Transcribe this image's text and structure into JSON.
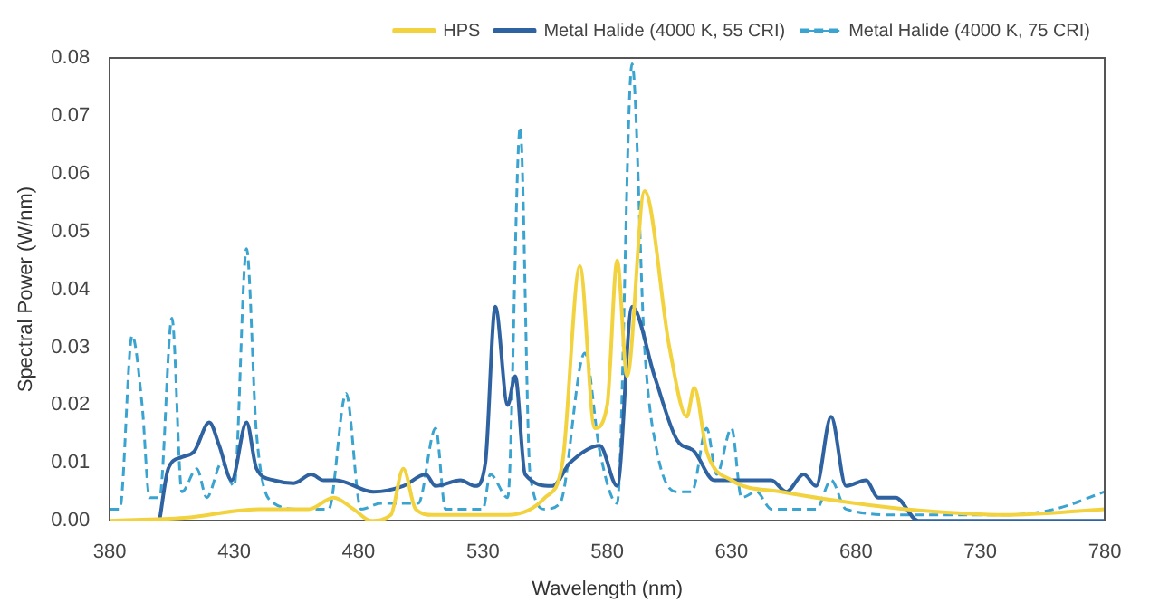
{
  "chart_data": {
    "type": "line",
    "xlabel": "Wavelength (nm)",
    "ylabel": "Spectral Power (W/nm)",
    "xlim": [
      380,
      780
    ],
    "xticks": [
      380,
      430,
      480,
      530,
      580,
      630,
      680,
      730,
      780
    ],
    "ylim": [
      0,
      0.08
    ],
    "yticks": [
      {
        "value": 0,
        "label": "0.00"
      },
      {
        "value": 0.01,
        "label": "0.01"
      },
      {
        "value": 0.02,
        "label": "0.02"
      },
      {
        "value": 0.03,
        "label": "0.03"
      },
      {
        "value": 0.04,
        "label": "0.04"
      },
      {
        "value": 0.05,
        "label": "0.05"
      },
      {
        "value": 0.06,
        "label": "0.06"
      },
      {
        "value": 0.07,
        "label": "0.07"
      },
      {
        "value": 0.08,
        "label": "0.08"
      }
    ],
    "grid": false,
    "legend": "top right",
    "marker": "none",
    "series": [
      {
        "name": "HPS",
        "color": "#f2d33f",
        "line_style": "solid",
        "x": [
          380,
          410,
          440,
          460,
          470,
          478,
          485,
          493,
          498,
          503,
          510,
          540,
          555,
          562,
          569,
          575,
          580,
          584,
          588,
          595,
          605,
          612,
          615,
          620,
          630,
          650,
          680,
          700,
          740,
          780
        ],
        "values": [
          0,
          0.0005,
          0.002,
          0.002,
          0.004,
          0.002,
          0,
          0.001,
          0.009,
          0.002,
          0.001,
          0.001,
          0.004,
          0.01,
          0.044,
          0.016,
          0.02,
          0.045,
          0.025,
          0.057,
          0.03,
          0.018,
          0.023,
          0.012,
          0.007,
          0.005,
          0.003,
          0.002,
          0.001,
          0.002
        ]
      },
      {
        "name": "Metal Halide (4000 K, 55 CRI)",
        "color": "#2f62a0",
        "line_style": "solid",
        "x": [
          400,
          403.5,
          409,
          414,
          420,
          424,
          429,
          435,
          439,
          446,
          454,
          461,
          466,
          471,
          486,
          498,
          507,
          511,
          521,
          527,
          531,
          535,
          540,
          543,
          547,
          558,
          565,
          577,
          584,
          590,
          599,
          608,
          615,
          623,
          631,
          646,
          652,
          659,
          664,
          670,
          676,
          684,
          689,
          696,
          705,
          780
        ],
        "values": [
          0,
          0.009,
          0.011,
          0.012,
          0.017,
          0.013,
          0.007,
          0.017,
          0.009,
          0.007,
          0.0065,
          0.008,
          0.007,
          0.007,
          0.005,
          0.006,
          0.008,
          0.006,
          0.007,
          0.006,
          0.01,
          0.037,
          0.02,
          0.025,
          0.008,
          0.006,
          0.01,
          0.013,
          0.006,
          0.037,
          0.025,
          0.014,
          0.012,
          0.007,
          0.007,
          0.007,
          0.005,
          0.008,
          0.006,
          0.018,
          0.006,
          0.007,
          0.004,
          0.004,
          0,
          0
        ]
      },
      {
        "name": "Metal Halide (4000 K, 75 CRI)",
        "color": "#3aa3cf",
        "line_style": "dashed",
        "x": [
          380,
          384,
          389,
          393,
          396,
          400,
          405,
          409,
          415,
          419,
          425,
          430,
          435,
          439,
          446,
          456,
          468,
          475,
          481,
          489,
          504,
          511,
          515,
          530,
          533,
          540,
          545,
          549,
          555,
          561,
          571,
          577,
          584,
          590,
          595,
          600,
          608,
          614,
          620,
          624,
          630,
          634,
          640,
          646,
          664,
          670,
          676,
          699,
          740,
          760,
          780
        ],
        "values": [
          0.002,
          0.002,
          0.032,
          0.02,
          0.004,
          0.004,
          0.035,
          0.005,
          0.009,
          0.004,
          0.01,
          0.006,
          0.047,
          0.015,
          0.003,
          0.002,
          0.002,
          0.022,
          0.002,
          0.003,
          0.003,
          0.016,
          0.002,
          0.002,
          0.008,
          0.004,
          0.068,
          0.008,
          0.002,
          0.003,
          0.029,
          0.012,
          0.003,
          0.079,
          0.03,
          0.012,
          0.005,
          0.005,
          0.016,
          0.008,
          0.016,
          0.004,
          0.005,
          0.002,
          0.002,
          0.007,
          0.002,
          0.001,
          0.001,
          0.002,
          0.005
        ]
      }
    ]
  }
}
